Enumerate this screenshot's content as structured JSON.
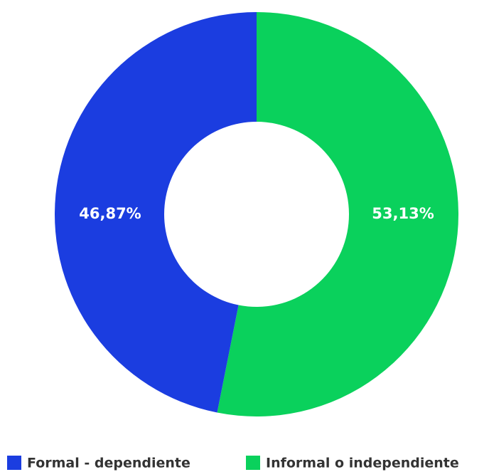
{
  "chart_data": {
    "type": "donut",
    "categories": [
      "Informal o independiente",
      "Formal - dependiente"
    ],
    "values": [
      53.13,
      46.87
    ],
    "value_labels": [
      "53,13%",
      "46,87%"
    ],
    "colors": [
      "#0ad15c",
      "#1b3de0"
    ]
  }
}
